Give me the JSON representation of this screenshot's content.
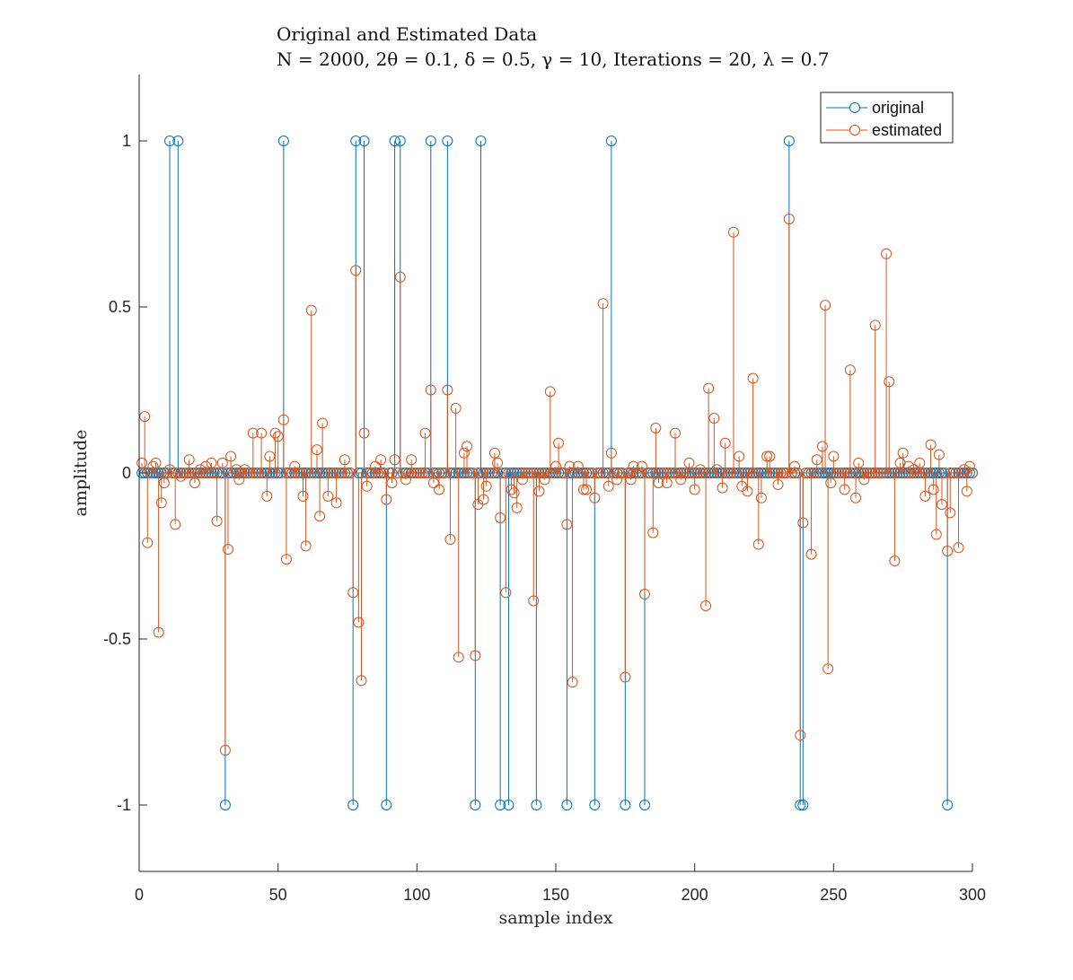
{
  "chart_data": {
    "type": "stem",
    "title": "Original and Estimated Data",
    "subtitle": "N = 2000, 2θ = 0.1, δ = 0.5, γ = 10, Iterations = 20, λ = 0.7",
    "xlabel": "sample index",
    "ylabel": "amplitude",
    "xlim": [
      0,
      300
    ],
    "ylim": [
      -1.2,
      1.2
    ],
    "xticks": [
      0,
      50,
      100,
      150,
      200,
      250,
      300
    ],
    "yticks": [
      -1,
      -0.5,
      0,
      0.5,
      1
    ],
    "ytick_labels": [
      "-1",
      "-0.5",
      "0",
      "0.5",
      "1"
    ],
    "grid": false,
    "legend_position": "top-right",
    "series": [
      {
        "name": "original",
        "color": "#0072BD",
        "marker": "circle",
        "nonzero": [
          [
            11,
            1
          ],
          [
            14,
            1
          ],
          [
            31,
            -1
          ],
          [
            52,
            1
          ],
          [
            77,
            -1
          ],
          [
            78,
            1
          ],
          [
            81,
            1
          ],
          [
            89,
            -1
          ],
          [
            92,
            1
          ],
          [
            94,
            1
          ],
          [
            105,
            1
          ],
          [
            111,
            1
          ],
          [
            121,
            -1
          ],
          [
            123,
            1
          ],
          [
            130,
            -1
          ],
          [
            133,
            -1
          ],
          [
            143,
            -1
          ],
          [
            154,
            -1
          ],
          [
            164,
            -1
          ],
          [
            170,
            1
          ],
          [
            175,
            -1
          ],
          [
            182,
            -1
          ],
          [
            234,
            1
          ],
          [
            238,
            -1
          ],
          [
            239,
            -1
          ],
          [
            291,
            -1
          ]
        ]
      },
      {
        "name": "estimated",
        "color": "#D95319",
        "marker": "circle",
        "points": [
          [
            1,
            0.03
          ],
          [
            2,
            0.17
          ],
          [
            3,
            -0.21
          ],
          [
            5,
            0.02
          ],
          [
            6,
            0.03
          ],
          [
            7,
            -0.48
          ],
          [
            8,
            -0.09
          ],
          [
            9,
            -0.03
          ],
          [
            11,
            0.01
          ],
          [
            13,
            -0.155
          ],
          [
            15,
            -0.01
          ],
          [
            18,
            0.04
          ],
          [
            20,
            -0.03
          ],
          [
            22,
            0.01
          ],
          [
            24,
            0.02
          ],
          [
            26,
            0.03
          ],
          [
            28,
            -0.145
          ],
          [
            30,
            0.03
          ],
          [
            31,
            -0.835
          ],
          [
            32,
            -0.23
          ],
          [
            33,
            0.05
          ],
          [
            35,
            0.01
          ],
          [
            36,
            -0.02
          ],
          [
            38,
            0.01
          ],
          [
            41,
            0.12
          ],
          [
            44,
            0.12
          ],
          [
            46,
            -0.07
          ],
          [
            47,
            0.05
          ],
          [
            49,
            0.12
          ],
          [
            50,
            0.11
          ],
          [
            52,
            0.16
          ],
          [
            53,
            -0.26
          ],
          [
            56,
            0.02
          ],
          [
            59,
            -0.07
          ],
          [
            60,
            -0.22
          ],
          [
            62,
            0.49
          ],
          [
            64,
            0.07
          ],
          [
            65,
            -0.13
          ],
          [
            66,
            0.15
          ],
          [
            68,
            -0.07
          ],
          [
            71,
            -0.09
          ],
          [
            74,
            0.04
          ],
          [
            77,
            -0.36
          ],
          [
            78,
            0.61
          ],
          [
            79,
            -0.45
          ],
          [
            80,
            -0.625
          ],
          [
            81,
            0.12
          ],
          [
            82,
            -0.04
          ],
          [
            85,
            0.02
          ],
          [
            87,
            0.04
          ],
          [
            89,
            -0.08
          ],
          [
            91,
            -0.03
          ],
          [
            92,
            0.04
          ],
          [
            94,
            0.59
          ],
          [
            96,
            -0.02
          ],
          [
            98,
            0.04
          ],
          [
            103,
            0.12
          ],
          [
            105,
            0.25
          ],
          [
            106,
            -0.03
          ],
          [
            108,
            -0.05
          ],
          [
            111,
            0.25
          ],
          [
            112,
            -0.2
          ],
          [
            114,
            0.195
          ],
          [
            115,
            -0.555
          ],
          [
            117,
            0.06
          ],
          [
            118,
            0.08
          ],
          [
            121,
            -0.55
          ],
          [
            122,
            -0.095
          ],
          [
            124,
            -0.08
          ],
          [
            125,
            -0.04
          ],
          [
            128,
            0.06
          ],
          [
            129,
            0.03
          ],
          [
            130,
            -0.135
          ],
          [
            132,
            -0.36
          ],
          [
            134,
            -0.05
          ],
          [
            135,
            -0.06
          ],
          [
            136,
            -0.105
          ],
          [
            138,
            -0.02
          ],
          [
            142,
            -0.385
          ],
          [
            144,
            -0.055
          ],
          [
            146,
            -0.02
          ],
          [
            148,
            0.245
          ],
          [
            150,
            0.02
          ],
          [
            151,
            0.09
          ],
          [
            154,
            -0.155
          ],
          [
            155,
            0.02
          ],
          [
            156,
            -0.63
          ],
          [
            158,
            0.02
          ],
          [
            160,
            -0.05
          ],
          [
            161,
            -0.05
          ],
          [
            164,
            -0.075
          ],
          [
            167,
            0.51
          ],
          [
            169,
            -0.04
          ],
          [
            170,
            0.06
          ],
          [
            172,
            -0.02
          ],
          [
            175,
            -0.615
          ],
          [
            177,
            -0.02
          ],
          [
            178,
            0.02
          ],
          [
            181,
            0.02
          ],
          [
            182,
            -0.365
          ],
          [
            185,
            -0.18
          ],
          [
            186,
            0.135
          ],
          [
            187,
            -0.03
          ],
          [
            190,
            -0.03
          ],
          [
            193,
            0.12
          ],
          [
            195,
            -0.02
          ],
          [
            198,
            0.03
          ],
          [
            200,
            -0.05
          ],
          [
            202,
            0.01
          ],
          [
            204,
            -0.4
          ],
          [
            205,
            0.255
          ],
          [
            207,
            0.165
          ],
          [
            208,
            0.01
          ],
          [
            210,
            -0.045
          ],
          [
            211,
            0.09
          ],
          [
            214,
            0.725
          ],
          [
            216,
            0.05
          ],
          [
            217,
            -0.04
          ],
          [
            219,
            -0.055
          ],
          [
            221,
            0.285
          ],
          [
            223,
            -0.215
          ],
          [
            224,
            -0.075
          ],
          [
            226,
            0.05
          ],
          [
            227,
            0.05
          ],
          [
            230,
            -0.035
          ],
          [
            234,
            0.765
          ],
          [
            236,
            0.02
          ],
          [
            238,
            -0.79
          ],
          [
            239,
            -0.15
          ],
          [
            242,
            -0.245
          ],
          [
            244,
            0.04
          ],
          [
            246,
            0.08
          ],
          [
            247,
            0.505
          ],
          [
            248,
            -0.59
          ],
          [
            249,
            -0.03
          ],
          [
            250,
            0.05
          ],
          [
            254,
            -0.05
          ],
          [
            256,
            0.31
          ],
          [
            258,
            -0.075
          ],
          [
            259,
            0.03
          ],
          [
            261,
            -0.02
          ],
          [
            265,
            0.445
          ],
          [
            269,
            0.66
          ],
          [
            270,
            0.275
          ],
          [
            272,
            -0.265
          ],
          [
            274,
            0.03
          ],
          [
            275,
            0.06
          ],
          [
            277,
            0.02
          ],
          [
            279,
            0.01
          ],
          [
            281,
            0.03
          ],
          [
            283,
            -0.07
          ],
          [
            285,
            0.085
          ],
          [
            286,
            -0.05
          ],
          [
            287,
            -0.185
          ],
          [
            288,
            0.055
          ],
          [
            289,
            -0.095
          ],
          [
            291,
            -0.235
          ],
          [
            292,
            -0.12
          ],
          [
            295,
            -0.225
          ],
          [
            297,
            0.01
          ],
          [
            298,
            -0.055
          ],
          [
            299,
            0.02
          ]
        ]
      }
    ]
  }
}
